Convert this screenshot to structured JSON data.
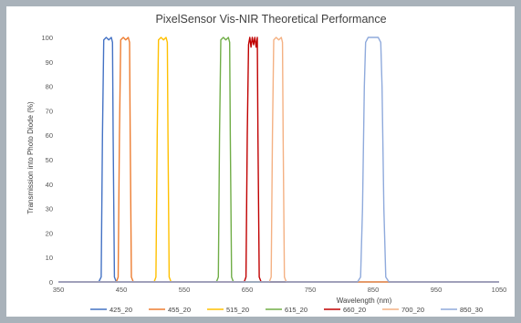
{
  "chart_data": {
    "type": "line",
    "title": "PixelSensor Vis-NIR Theoretical Performance",
    "xlabel": "Wavelength (nm)",
    "ylabel": "Transmission into Photo Diode (%)",
    "xlim": [
      350,
      1050
    ],
    "ylim": [
      0,
      100
    ],
    "xticks": [
      "350",
      "450",
      "550",
      "650",
      "750",
      "850",
      "950",
      "1050"
    ],
    "yticks": [
      "0",
      "10",
      "20",
      "30",
      "40",
      "50",
      "60",
      "70",
      "80",
      "90",
      "100"
    ],
    "grid": false,
    "legend_position": "bottom",
    "series": [
      {
        "name": "425_20",
        "color": "#4472c4",
        "points": [
          [
            414,
            0
          ],
          [
            418,
            2
          ],
          [
            420,
            60
          ],
          [
            422,
            99
          ],
          [
            426,
            100
          ],
          [
            430,
            99
          ],
          [
            434,
            100
          ],
          [
            436,
            98
          ],
          [
            437,
            60
          ],
          [
            439,
            2
          ],
          [
            442,
            0
          ]
        ]
      },
      {
        "name": "455_20",
        "color": "#ed7d31",
        "points": [
          [
            442,
            0
          ],
          [
            445,
            2
          ],
          [
            447,
            60
          ],
          [
            449,
            99
          ],
          [
            453,
            100
          ],
          [
            457,
            99
          ],
          [
            461,
            100
          ],
          [
            463,
            98
          ],
          [
            464,
            60
          ],
          [
            466,
            2
          ],
          [
            469,
            0
          ]
        ]
      },
      {
        "name": "515_20",
        "color": "#ffc000",
        "points": [
          [
            502,
            0
          ],
          [
            505,
            2
          ],
          [
            507,
            60
          ],
          [
            509,
            99
          ],
          [
            513,
            100
          ],
          [
            517,
            99
          ],
          [
            521,
            100
          ],
          [
            523,
            98
          ],
          [
            524,
            60
          ],
          [
            526,
            2
          ],
          [
            529,
            0
          ]
        ]
      },
      {
        "name": "615_20",
        "color": "#70ad47",
        "points": [
          [
            601,
            0
          ],
          [
            604,
            2
          ],
          [
            606,
            60
          ],
          [
            608,
            99
          ],
          [
            612,
            100
          ],
          [
            616,
            99
          ],
          [
            620,
            100
          ],
          [
            622,
            98
          ],
          [
            623,
            60
          ],
          [
            625,
            2
          ],
          [
            628,
            0
          ]
        ]
      },
      {
        "name": "660_20",
        "color": "#c00000",
        "points": [
          [
            645,
            0
          ],
          [
            648,
            2
          ],
          [
            650,
            60
          ],
          [
            652,
            97
          ],
          [
            654,
            100
          ],
          [
            656,
            96
          ],
          [
            658,
            100
          ],
          [
            660,
            97
          ],
          [
            662,
            100
          ],
          [
            664,
            96
          ],
          [
            666,
            100
          ],
          [
            667,
            60
          ],
          [
            669,
            2
          ],
          [
            672,
            0
          ]
        ]
      },
      {
        "name": "700_20",
        "color": "#f4b183",
        "points": [
          [
            685,
            0
          ],
          [
            688,
            2
          ],
          [
            690,
            60
          ],
          [
            692,
            99
          ],
          [
            696,
            100
          ],
          [
            700,
            99
          ],
          [
            704,
            100
          ],
          [
            706,
            98
          ],
          [
            707,
            60
          ],
          [
            709,
            2
          ],
          [
            712,
            0
          ]
        ]
      },
      {
        "name": "850_30",
        "color": "#8faadc",
        "points": [
          [
            825,
            0
          ],
          [
            830,
            2
          ],
          [
            833,
            30
          ],
          [
            836,
            80
          ],
          [
            838,
            98
          ],
          [
            842,
            100
          ],
          [
            850,
            100
          ],
          [
            858,
            100
          ],
          [
            862,
            98
          ],
          [
            864,
            80
          ],
          [
            867,
            30
          ],
          [
            870,
            2
          ],
          [
            875,
            0
          ]
        ]
      }
    ]
  }
}
